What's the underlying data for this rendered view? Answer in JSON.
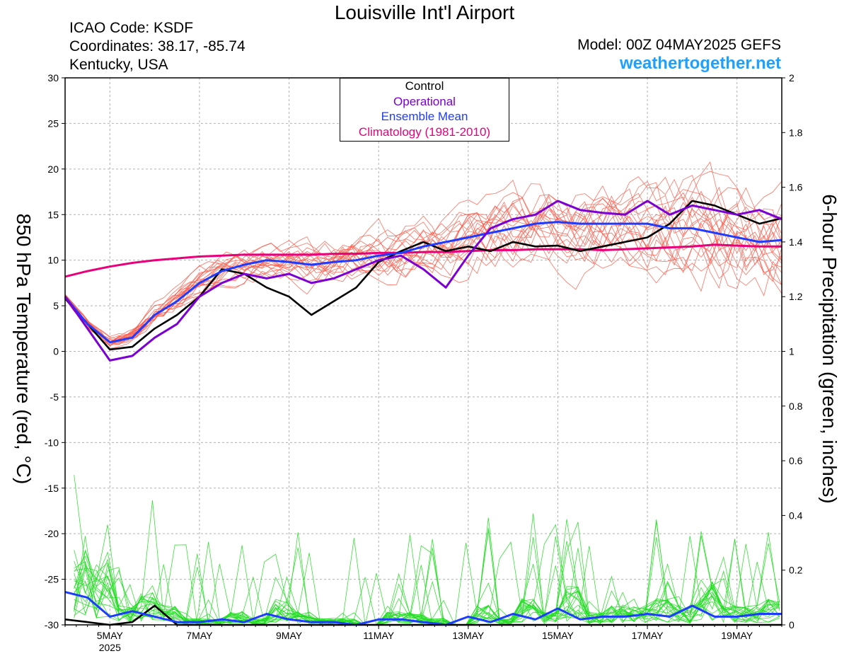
{
  "header": {
    "title": "Louisville Int'l Airport",
    "icao": "ICAO Code: KSDF",
    "coordinates": "Coordinates: 38.17, -85.74",
    "region": "Kentucky, USA",
    "model": "Model: 00Z 04MAY2025 GEFS",
    "site": "weathertogether.net"
  },
  "legend": {
    "control": "Control",
    "operational": "Operational",
    "ensemble_mean": "Ensemble Mean",
    "climatology": "Climatology (1981-2010)"
  },
  "colors": {
    "control": "#000000",
    "operational": "#7a00d4",
    "ensemble_mean": "#1e3cff",
    "climatology": "#e8007a",
    "temp_members": "#ff4a3a",
    "precip_members": "#22dd22"
  },
  "chart_data": {
    "type": "line",
    "xlabel": "",
    "ylabel": "850 hPa Temperature (red, °C)",
    "ylabel_right": "6-hour Precipitation (green, inches)",
    "ylim": [
      -30,
      30
    ],
    "ylim_right": [
      0,
      2
    ],
    "yticks": [
      "-30",
      "-25",
      "-20",
      "-15",
      "-10",
      "-5",
      "0",
      "5",
      "10",
      "15",
      "20",
      "25",
      "30"
    ],
    "yticks_right": [
      "0",
      "0.2",
      "0.4",
      "0.6",
      "0.8",
      "1",
      "1.2",
      "1.4",
      "1.6",
      "1.8",
      "2"
    ],
    "xlim_days": [
      4.0,
      20.0
    ],
    "xticks": [
      {
        "day": 5,
        "label": "5MAY",
        "sub": "2025"
      },
      {
        "day": 7,
        "label": "7MAY",
        "sub": ""
      },
      {
        "day": 9,
        "label": "9MAY",
        "sub": ""
      },
      {
        "day": 11,
        "label": "11MAY",
        "sub": ""
      },
      {
        "day": 13,
        "label": "13MAY",
        "sub": ""
      },
      {
        "day": 15,
        "label": "15MAY",
        "sub": ""
      },
      {
        "day": 17,
        "label": "17MAY",
        "sub": ""
      },
      {
        "day": 19,
        "label": "19MAY",
        "sub": ""
      }
    ],
    "grid": true,
    "x_days": [
      4.0,
      4.5,
      5.0,
      5.5,
      6.0,
      6.5,
      7.0,
      7.5,
      8.0,
      8.5,
      9.0,
      9.5,
      10.0,
      10.5,
      11.0,
      11.5,
      12.0,
      12.5,
      13.0,
      13.5,
      14.0,
      14.5,
      15.0,
      15.5,
      16.0,
      16.5,
      17.0,
      17.5,
      18.0,
      18.5,
      19.0,
      19.5,
      20.0
    ],
    "series": [
      {
        "name": "Control",
        "axis": "left",
        "values": [
          5.8,
          3.0,
          0.2,
          0.5,
          2.5,
          4.0,
          6.0,
          9.0,
          8.5,
          7.0,
          6.0,
          4.0,
          5.5,
          7.0,
          9.8,
          11.0,
          12.0,
          11.0,
          11.5,
          11.0,
          12.0,
          11.5,
          11.6,
          11.0,
          11.5,
          12.0,
          12.5,
          14.0,
          16.5,
          16.0,
          15.0,
          14.0,
          14.6
        ]
      },
      {
        "name": "Operational",
        "axis": "left",
        "values": [
          6.0,
          2.5,
          -1.0,
          -0.5,
          1.5,
          3.0,
          6.0,
          7.5,
          8.5,
          8.0,
          8.5,
          7.5,
          8.0,
          9.0,
          10.0,
          10.5,
          9.0,
          7.0,
          10.5,
          13.5,
          14.5,
          15.0,
          16.5,
          15.5,
          15.2,
          15.0,
          16.5,
          15.0,
          16.0,
          15.5,
          15.0,
          15.5,
          14.5
        ]
      },
      {
        "name": "Ensemble Mean",
        "axis": "left",
        "values": [
          6.0,
          3.0,
          1.0,
          1.5,
          4.0,
          5.5,
          7.5,
          8.8,
          9.5,
          10.0,
          9.8,
          9.5,
          9.8,
          10.0,
          10.5,
          10.8,
          11.5,
          12.0,
          12.5,
          13.0,
          13.5,
          14.0,
          14.2,
          14.0,
          14.0,
          14.0,
          14.0,
          13.5,
          13.5,
          13.0,
          12.5,
          12.0,
          12.2
        ]
      },
      {
        "name": "Climatology (1981-2010)",
        "axis": "left",
        "values": [
          8.2,
          8.8,
          9.3,
          9.7,
          10.0,
          10.2,
          10.4,
          10.5,
          10.6,
          10.6,
          10.6,
          10.6,
          10.7,
          10.7,
          10.8,
          10.8,
          10.9,
          10.9,
          11.0,
          11.1,
          11.1,
          11.2,
          11.2,
          11.2,
          11.1,
          11.2,
          11.3,
          11.4,
          11.5,
          11.7,
          11.6,
          11.5,
          11.5
        ]
      },
      {
        "name": "Control precipitation",
        "axis": "right",
        "values": [
          0.02,
          0.01,
          0.0,
          0.01,
          0.07,
          0.0,
          0.0,
          0.0,
          0.0,
          0.0,
          0.0,
          0.0,
          0.0,
          0.0,
          0.0,
          0.0,
          0.0,
          0.0,
          0.0,
          0.0,
          0.0,
          0.0,
          0.0,
          0.0,
          0.0,
          0.0,
          0.0,
          0.0,
          0.0,
          0.0,
          0.0,
          0.0,
          0.0
        ]
      },
      {
        "name": "Ensemble Mean precipitation",
        "axis": "right",
        "values": [
          0.12,
          0.1,
          0.03,
          0.05,
          0.03,
          0.01,
          0.01,
          0.02,
          0.01,
          0.04,
          0.02,
          0.01,
          0.01,
          0.0,
          0.02,
          0.02,
          0.01,
          0.0,
          0.03,
          0.01,
          0.04,
          0.02,
          0.06,
          0.02,
          0.03,
          0.03,
          0.04,
          0.03,
          0.07,
          0.03,
          0.03,
          0.04,
          0.04
        ]
      }
    ]
  }
}
